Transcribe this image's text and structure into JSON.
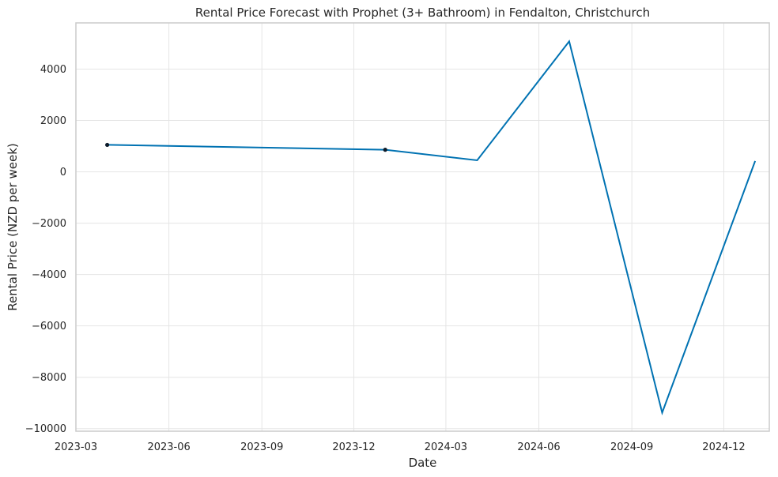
{
  "chart_data": {
    "type": "line",
    "title": "Rental Price Forecast with Prophet (3+ Bathroom) in Fendalton, Christchurch",
    "xlabel": "Date",
    "ylabel": "Rental Price (NZD per week)",
    "grid": true,
    "x_ticks": [
      "2023-03",
      "2023-06",
      "2023-09",
      "2023-12",
      "2024-03",
      "2024-06",
      "2024-09",
      "2024-12"
    ],
    "y_ticks": [
      4000,
      2000,
      0,
      -2000,
      -4000,
      -6000,
      -8000,
      -10000
    ],
    "y_tick_labels": [
      "4000",
      "2000",
      "0",
      "−2000",
      "−4000",
      "−6000",
      "−8000",
      "−10000"
    ],
    "xlim": [
      "2023-03-01",
      "2025-01-15"
    ],
    "ylim": [
      -10100,
      5800
    ],
    "series": [
      {
        "kind": "forecast",
        "color": "#0072b2",
        "x": [
          "2023-04-01",
          "2024-01-01",
          "2024-04-01",
          "2024-07-01",
          "2024-10-01",
          "2025-01-01"
        ],
        "y": [
          1050,
          860,
          450,
          5080,
          -9380,
          420
        ]
      },
      {
        "kind": "observed",
        "color": "#0d1b2a",
        "x": [
          "2023-04-01",
          "2024-01-01"
        ],
        "y": [
          1050,
          860
        ]
      }
    ]
  }
}
